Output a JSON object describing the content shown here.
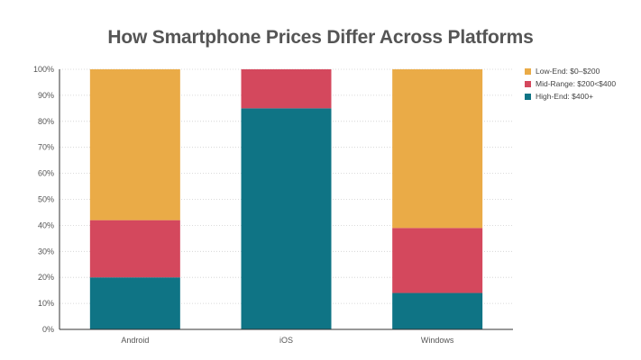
{
  "chart_data": {
    "type": "bar",
    "stacked": true,
    "title": "How Smartphone Prices Differ Across Platforms",
    "xlabel": "",
    "ylabel": "",
    "categories": [
      "Android",
      "iOS",
      "Windows"
    ],
    "ylim": [
      0,
      100
    ],
    "yticks": [
      "0%",
      "10%",
      "20%",
      "30%",
      "40%",
      "50%",
      "60%",
      "70%",
      "80%",
      "90%",
      "100%"
    ],
    "grid": "horizontal dotted",
    "legend_position": "right",
    "series": [
      {
        "name": "High-End: $400+",
        "color": "#0f7485",
        "values": [
          20,
          85,
          14
        ]
      },
      {
        "name": "Mid-Range: $200<$400",
        "color": "#d4485d",
        "values": [
          22,
          15,
          25
        ]
      },
      {
        "name": "Low-End: $0–$200",
        "color": "#eaab47",
        "values": [
          58,
          0,
          61
        ]
      }
    ],
    "legend_order": [
      2,
      1,
      0
    ]
  }
}
